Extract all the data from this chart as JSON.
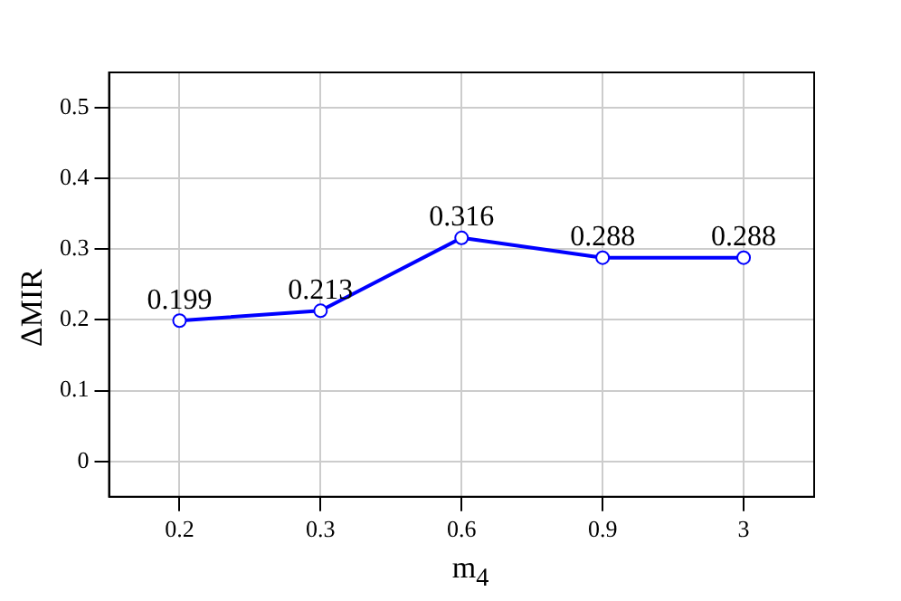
{
  "chart_data": {
    "type": "line",
    "xlabel": "m$_{4}$",
    "ylabel": "ΔMIR",
    "categories": [
      "0.2",
      "0.3",
      "0.6",
      "0.9",
      "3"
    ],
    "series": [
      {
        "color": "#0000ff",
        "values": [
          0.199,
          0.213,
          0.316,
          0.288,
          0.288
        ]
      }
    ],
    "ylim": [
      -0.05,
      0.55
    ],
    "yticks": [
      0,
      0.1,
      0.2,
      0.3,
      0.4,
      0.5
    ],
    "grid": true,
    "marker": "circle",
    "line_style": "solid",
    "data_labels": true,
    "legend": false
  }
}
